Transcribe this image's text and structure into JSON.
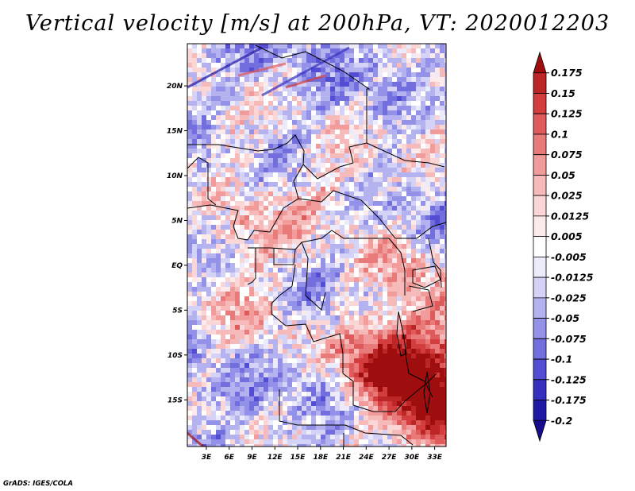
{
  "title": "Vertical velocity [m/s] at 200hPa, VT: 2020012203",
  "credit": "GrADS: IGES/COLA",
  "map": {
    "lat_labels": [
      "20N",
      "15N",
      "10N",
      "5N",
      "EQ",
      "5S",
      "10S",
      "15S"
    ],
    "lat_values": [
      20,
      15,
      10,
      5,
      0,
      -5,
      -10,
      -15
    ],
    "lon_labels": [
      "3E",
      "6E",
      "9E",
      "12E",
      "15E",
      "18E",
      "21E",
      "24E",
      "27E",
      "30E",
      "33E"
    ],
    "lon_values": [
      3,
      6,
      9,
      12,
      15,
      18,
      21,
      24,
      27,
      30,
      33
    ],
    "lon_range": [
      0.5,
      34.5
    ],
    "lat_range": [
      -20.2,
      24.7
    ]
  },
  "colorbar": {
    "labels": [
      "0.175",
      "0.15",
      "0.125",
      "0.1",
      "0.075",
      "0.05",
      "0.025",
      "0.0125",
      "0.005",
      "-0.005",
      "-0.0125",
      "-0.025",
      "-0.05",
      "-0.075",
      "-0.1",
      "-0.125",
      "-0.175",
      "-0.2"
    ],
    "colors": [
      "#9e0e0e",
      "#bd2626",
      "#d33d3d",
      "#df5a5a",
      "#e97a7a",
      "#f19b9b",
      "#f7baba",
      "#fbd6d6",
      "#fdeaea",
      "#ffffff",
      "#ecebfb",
      "#d4d2f6",
      "#b5b2f0",
      "#9491e8",
      "#726ede",
      "#524dd2",
      "#3530bf",
      "#1e18a7",
      "#160c8c"
    ]
  }
}
